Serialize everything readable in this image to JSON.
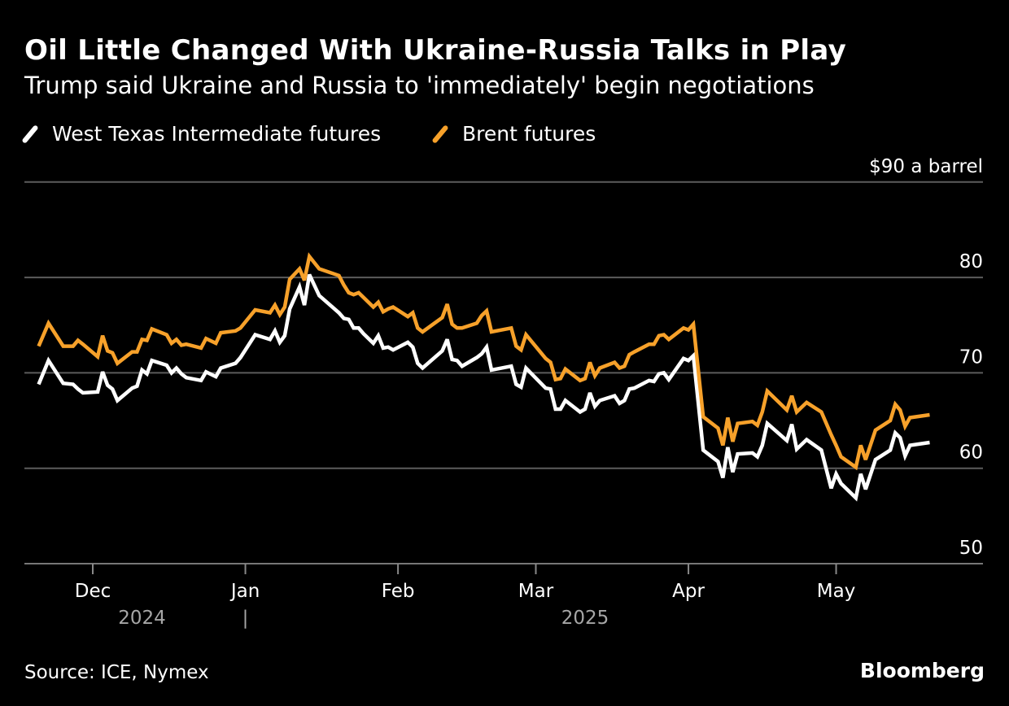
{
  "chart_data": {
    "type": "line",
    "title": "Oil Little Changed With Ukraine-Russia Talks in Play",
    "subtitle": "Trump said Ukraine and Russia to 'immediately' begin negotiations",
    "ylabel": "$90 a barrel",
    "ylim": [
      50,
      90
    ],
    "yticks": [
      {
        "value": 90,
        "label": "$90 a barrel"
      },
      {
        "value": 80,
        "label": "80"
      },
      {
        "value": 70,
        "label": "70"
      },
      {
        "value": 60,
        "label": "60"
      },
      {
        "value": 50,
        "label": "50"
      }
    ],
    "xlim": [
      "2024-11-20",
      "2025-05-20"
    ],
    "xticks": [
      {
        "date": "2024-12-01",
        "label": "Dec"
      },
      {
        "date": "2025-01-01",
        "label": "Jan"
      },
      {
        "date": "2025-02-01",
        "label": "Feb"
      },
      {
        "date": "2025-03-01",
        "label": "Mar"
      },
      {
        "date": "2025-04-01",
        "label": "Apr"
      },
      {
        "date": "2025-05-01",
        "label": "May"
      }
    ],
    "year_labels": [
      {
        "label": "2024",
        "center": "2024-12-11"
      },
      {
        "label": "|",
        "center": "2025-01-01"
      },
      {
        "label": "2025",
        "center": "2025-03-11"
      }
    ],
    "grid": true,
    "legend_placement": "top-left",
    "dates": [
      "2024-11-20",
      "2024-11-22",
      "2024-11-25",
      "2024-11-27",
      "2024-11-28",
      "2024-11-29",
      "2024-12-02",
      "2024-12-03",
      "2024-12-04",
      "2024-12-05",
      "2024-12-06",
      "2024-12-09",
      "2024-12-10",
      "2024-12-11",
      "2024-12-12",
      "2024-12-13",
      "2024-12-16",
      "2024-12-17",
      "2024-12-18",
      "2024-12-19",
      "2024-12-20",
      "2024-12-23",
      "2024-12-24",
      "2024-12-26",
      "2024-12-27",
      "2024-12-30",
      "2024-12-31",
      "2025-01-03",
      "2025-01-06",
      "2025-01-07",
      "2025-01-08",
      "2025-01-09",
      "2025-01-10",
      "2025-01-12",
      "2025-01-13",
      "2025-01-14",
      "2025-01-16",
      "2025-01-20",
      "2025-01-21",
      "2025-01-22",
      "2025-01-23",
      "2025-01-24",
      "2025-01-25",
      "2025-01-27",
      "2025-01-28",
      "2025-01-29",
      "2025-01-30",
      "2025-01-31",
      "2025-02-03",
      "2025-02-04",
      "2025-02-05",
      "2025-02-06",
      "2025-02-10",
      "2025-02-11",
      "2025-02-12",
      "2025-02-13",
      "2025-02-14",
      "2025-02-17",
      "2025-02-18",
      "2025-02-19",
      "2025-02-20",
      "2025-02-24",
      "2025-02-25",
      "2025-02-26",
      "2025-02-27",
      "2025-03-03",
      "2025-03-04",
      "2025-03-05",
      "2025-03-06",
      "2025-03-07",
      "2025-03-10",
      "2025-03-11",
      "2025-03-12",
      "2025-03-13",
      "2025-03-14",
      "2025-03-17",
      "2025-03-18",
      "2025-03-19",
      "2025-03-20",
      "2025-03-21",
      "2025-03-24",
      "2025-03-25",
      "2025-03-26",
      "2025-03-27",
      "2025-03-28",
      "2025-03-31",
      "2025-04-01",
      "2025-04-02",
      "2025-04-04",
      "2025-04-07",
      "2025-04-08",
      "2025-04-09",
      "2025-04-10",
      "2025-04-11",
      "2025-04-14",
      "2025-04-15",
      "2025-04-16",
      "2025-04-17",
      "2025-04-21",
      "2025-04-22",
      "2025-04-23",
      "2025-04-25",
      "2025-04-28",
      "2025-04-30",
      "2025-05-01",
      "2025-05-02",
      "2025-05-05",
      "2025-05-06",
      "2025-05-07",
      "2025-05-09",
      "2025-05-12",
      "2025-05-13",
      "2025-05-14",
      "2025-05-15",
      "2025-05-16",
      "2025-05-20"
    ],
    "series": [
      {
        "name": "West Texas Intermediate futures",
        "color": "#ffffff",
        "values": [
          68.8,
          71.3,
          68.9,
          68.8,
          68.3,
          67.9,
          68.0,
          70.1,
          68.7,
          68.3,
          67.1,
          68.4,
          68.6,
          70.3,
          69.9,
          71.3,
          70.8,
          70.0,
          70.5,
          69.9,
          69.5,
          69.2,
          70.1,
          69.6,
          70.5,
          71.0,
          71.6,
          74.0,
          73.5,
          74.4,
          73.2,
          73.9,
          76.7,
          79.0,
          77.1,
          80.3,
          78.1,
          76.3,
          75.7,
          75.6,
          74.7,
          74.7,
          74.1,
          73.1,
          73.9,
          72.6,
          72.7,
          72.4,
          73.2,
          72.7,
          71.0,
          70.5,
          72.3,
          73.5,
          71.4,
          71.3,
          70.7,
          71.6,
          72.0,
          72.7,
          70.3,
          70.7,
          68.8,
          68.5,
          70.5,
          68.4,
          68.3,
          66.2,
          66.2,
          67.1,
          65.9,
          66.2,
          67.9,
          66.5,
          67.1,
          67.6,
          66.8,
          67.1,
          68.3,
          68.4,
          69.2,
          69.1,
          69.9,
          70.0,
          69.3,
          71.5,
          71.3,
          71.8,
          61.9,
          60.7,
          59.0,
          62.2,
          59.6,
          61.5,
          61.6,
          61.2,
          62.4,
          64.7,
          62.9,
          64.6,
          62.0,
          63.0,
          61.9,
          57.9,
          59.4,
          58.4,
          56.9,
          59.4,
          57.8,
          60.9,
          61.9,
          63.7,
          63.2,
          61.3,
          62.4,
          62.7
        ]
      },
      {
        "name": "Brent futures",
        "color": "#f7a12a",
        "values": [
          72.8,
          75.2,
          72.8,
          72.8,
          73.4,
          73.0,
          71.7,
          73.9,
          72.3,
          72.1,
          71.0,
          72.2,
          72.2,
          73.5,
          73.4,
          74.6,
          74.0,
          73.1,
          73.5,
          72.9,
          73.0,
          72.6,
          73.6,
          73.1,
          74.2,
          74.4,
          74.7,
          76.6,
          76.3,
          77.1,
          76.1,
          76.9,
          79.8,
          80.9,
          79.7,
          82.2,
          80.9,
          80.2,
          79.2,
          78.4,
          78.2,
          78.4,
          77.9,
          76.9,
          77.4,
          76.4,
          76.7,
          76.9,
          75.9,
          76.3,
          74.7,
          74.3,
          75.8,
          77.2,
          75.1,
          74.7,
          74.7,
          75.2,
          76.0,
          76.5,
          74.3,
          74.7,
          72.8,
          72.4,
          74.0,
          71.5,
          71.1,
          69.3,
          69.4,
          70.4,
          69.2,
          69.4,
          71.1,
          69.7,
          70.5,
          71.1,
          70.5,
          70.7,
          71.9,
          72.2,
          73.0,
          73.0,
          73.9,
          74.0,
          73.5,
          74.7,
          74.5,
          75.1,
          65.4,
          64.2,
          62.4,
          65.3,
          62.8,
          64.7,
          64.9,
          64.5,
          65.9,
          68.1,
          66.1,
          67.6,
          65.9,
          66.9,
          65.9,
          63.5,
          62.4,
          61.2,
          60.1,
          62.4,
          60.9,
          64.0,
          65.0,
          66.7,
          66.1,
          64.4,
          65.3,
          65.6
        ]
      }
    ]
  },
  "footer": {
    "source": "Source: ICE, Nymex",
    "brand": "Bloomberg"
  },
  "colors": {
    "background": "#000000",
    "grid": "#5c5c5c",
    "wti": "#ffffff",
    "brent": "#f7a12a",
    "year_label": "#a6a6a6"
  }
}
